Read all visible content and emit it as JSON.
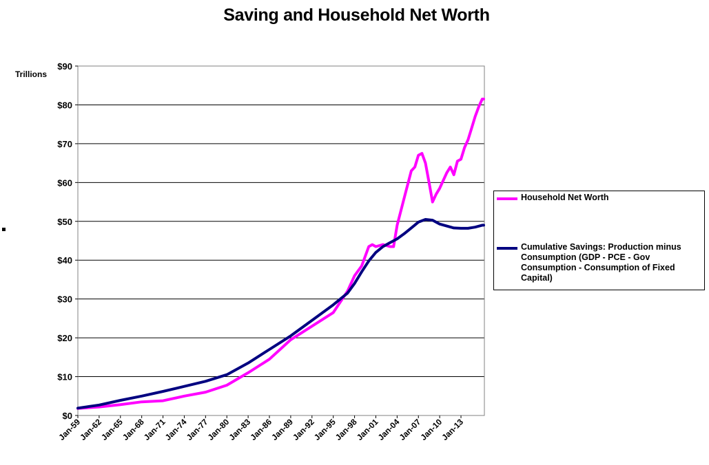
{
  "chart_data": {
    "type": "line",
    "title": "Saving and Household Net Worth",
    "ylabel": "Trillions",
    "xlabel": "",
    "ylim": [
      0,
      90
    ],
    "xlim": [
      1959.0,
      2016.3
    ],
    "y_ticks": [
      0,
      10,
      20,
      30,
      40,
      50,
      60,
      70,
      80,
      90
    ],
    "y_tick_labels": [
      "$0",
      "$10",
      "$20",
      "$30",
      "$40",
      "$50",
      "$60",
      "$70",
      "$80",
      "$90"
    ],
    "x_ticks": [
      1959,
      1962,
      1965,
      1968,
      1971,
      1974,
      1977,
      1980,
      1983,
      1986,
      1989,
      1992,
      1995,
      1998,
      2001,
      2004,
      2007,
      2010,
      2013
    ],
    "x_tick_labels": [
      "Jan-59",
      "Jan-62",
      "Jan-65",
      "Jan-68",
      "Jan-71",
      "Jan-74",
      "Jan-77",
      "Jan-80",
      "Jan-83",
      "Jan-86",
      "Jan-89",
      "Jan-92",
      "Jan-95",
      "Jan-98",
      "Jan-01",
      "Jan-04",
      "Jan-07",
      "Jan-10",
      "Jan-13"
    ],
    "grid": true,
    "legend_position": "right",
    "series": [
      {
        "name": "Household Net Worth",
        "color": "#ff00ff",
        "x": [
          1959,
          1962,
          1965,
          1968,
          1971,
          1974,
          1977,
          1980,
          1983,
          1986,
          1989,
          1992,
          1995,
          1997,
          1998,
          1999,
          2000,
          2000.5,
          2001,
          2002,
          2003,
          2003.5,
          2004,
          2005,
          2006,
          2006.5,
          2007,
          2007.5,
          2008,
          2008.5,
          2009,
          2009.5,
          2010,
          2011,
          2011.5,
          2012,
          2012.5,
          2013,
          2013.5,
          2014,
          2014.5,
          2015,
          2015.5,
          2016,
          2016.2
        ],
        "y": [
          1.8,
          2.2,
          2.8,
          3.5,
          3.8,
          5.0,
          6.0,
          7.8,
          11.0,
          14.5,
          19.5,
          23.0,
          26.5,
          32.0,
          36.0,
          38.5,
          43.5,
          44.0,
          43.5,
          44.0,
          43.5,
          43.5,
          49.0,
          56.0,
          63.0,
          64.0,
          67.0,
          67.5,
          65.0,
          60.0,
          55.0,
          57.0,
          58.5,
          62.5,
          64.0,
          62.0,
          65.5,
          66.0,
          69.0,
          71.0,
          74.0,
          77.0,
          79.5,
          81.5,
          81.5
        ]
      },
      {
        "name": "Cumulative Savings: Production minus Consumption (GDP - PCE - Gov Consumption - Consumption of Fixed Capital)",
        "color": "#000080",
        "x": [
          1959,
          1962,
          1965,
          1968,
          1971,
          1974,
          1977,
          1980,
          1983,
          1986,
          1989,
          1992,
          1995,
          1997,
          1998,
          1999,
          2000,
          2001,
          2002,
          2003,
          2004,
          2005,
          2006,
          2007,
          2008,
          2009,
          2010,
          2011,
          2012,
          2013,
          2014,
          2015,
          2016,
          2016.2
        ],
        "y": [
          1.9,
          2.7,
          3.9,
          5.0,
          6.2,
          7.5,
          8.8,
          10.5,
          13.5,
          17.0,
          20.5,
          24.5,
          28.5,
          31.5,
          34.0,
          37.0,
          39.8,
          42.0,
          43.5,
          44.5,
          45.5,
          46.8,
          48.3,
          49.8,
          50.5,
          50.3,
          49.3,
          48.8,
          48.3,
          48.2,
          48.2,
          48.5,
          49.0,
          49.0
        ]
      }
    ]
  }
}
